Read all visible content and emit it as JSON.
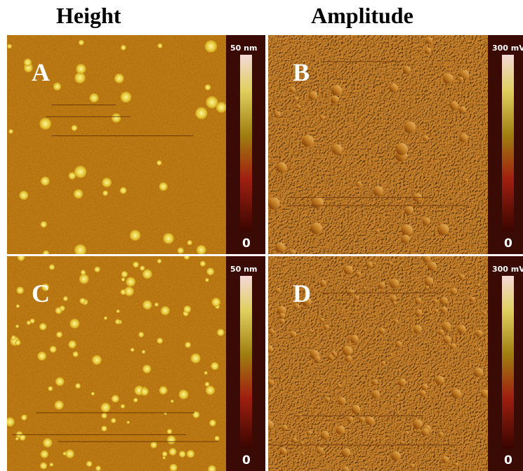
{
  "columns": [
    "Height",
    "Amplitude"
  ],
  "panels": [
    {
      "label": "A",
      "scale_max": "50 nm",
      "scale_min": "0"
    },
    {
      "label": "B",
      "scale_max": "300 mV",
      "scale_min": "0"
    },
    {
      "label": "C",
      "scale_max": "50 nm",
      "scale_min": "0"
    },
    {
      "label": "D",
      "scale_max": "300 mV",
      "scale_min": "0"
    }
  ]
}
